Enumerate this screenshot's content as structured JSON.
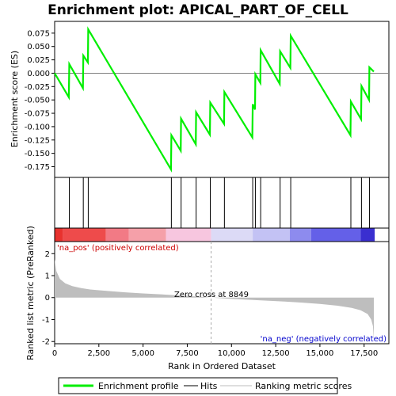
{
  "chart_data": {
    "type": "line",
    "title": "Enrichment plot: APICAL_PART_OF_CELL",
    "ylabel_top": "Enrichment score (ES)",
    "ylabel_bottom": "Ranked list metric (PreRanked)",
    "xlabel": "Rank in Ordered Dataset",
    "x_ticks": [
      "0",
      "2,500",
      "5,000",
      "7,500",
      "10,000",
      "12,500",
      "15,000",
      "17,500"
    ],
    "x_tick_values": [
      0,
      2500,
      5000,
      7500,
      10000,
      12500,
      15000,
      17500
    ],
    "xlim": [
      0,
      18900
    ],
    "es_ylim": [
      -0.195,
      0.097
    ],
    "es_y_ticks": [
      "0.075",
      "0.050",
      "0.025",
      "0.000",
      "-0.025",
      "-0.050",
      "-0.075",
      "-0.100",
      "-0.125",
      "-0.150",
      "-0.175"
    ],
    "es_y_tick_values": [
      0.075,
      0.05,
      0.025,
      0.0,
      -0.025,
      -0.05,
      -0.075,
      -0.1,
      -0.125,
      -0.15,
      -0.175
    ],
    "metric_ylim": [
      -2.1,
      2.55
    ],
    "metric_y_ticks": [
      "2",
      "1",
      "0",
      "-1",
      "-2"
    ],
    "metric_y_tick_values": [
      2,
      1,
      0,
      -1,
      -2
    ],
    "hits": [
      830,
      1620,
      1900,
      6600,
      7150,
      8000,
      8800,
      9600,
      11200,
      11350,
      11650,
      12750,
      13350,
      16750,
      17350,
      17800
    ],
    "es_points": [
      [
        0,
        0.0
      ],
      [
        800,
        -0.045
      ],
      [
        830,
        0.017
      ],
      [
        1600,
        -0.028
      ],
      [
        1620,
        0.033
      ],
      [
        1880,
        0.02
      ],
      [
        1900,
        0.082
      ],
      [
        6580,
        -0.18
      ],
      [
        6600,
        -0.116
      ],
      [
        7130,
        -0.145
      ],
      [
        7150,
        -0.085
      ],
      [
        7980,
        -0.133
      ],
      [
        8000,
        -0.073
      ],
      [
        8780,
        -0.115
      ],
      [
        8800,
        -0.055
      ],
      [
        9580,
        -0.095
      ],
      [
        9600,
        -0.035
      ],
      [
        11180,
        -0.12
      ],
      [
        11200,
        -0.058
      ],
      [
        11330,
        -0.068
      ],
      [
        11350,
        -0.002
      ],
      [
        11630,
        -0.018
      ],
      [
        11650,
        0.043
      ],
      [
        12730,
        -0.02
      ],
      [
        12750,
        0.041
      ],
      [
        13330,
        0.01
      ],
      [
        13350,
        0.07
      ],
      [
        16730,
        -0.116
      ],
      [
        16750,
        -0.053
      ],
      [
        17330,
        -0.086
      ],
      [
        17350,
        -0.024
      ],
      [
        17780,
        -0.05
      ],
      [
        17800,
        0.011
      ],
      [
        18050,
        0.003
      ]
    ],
    "metric_curve": [
      [
        0,
        1.75
      ],
      [
        100,
        1.2
      ],
      [
        300,
        0.85
      ],
      [
        600,
        0.65
      ],
      [
        1000,
        0.52
      ],
      [
        1500,
        0.43
      ],
      [
        2000,
        0.37
      ],
      [
        3000,
        0.3
      ],
      [
        4000,
        0.24
      ],
      [
        5000,
        0.19
      ],
      [
        6000,
        0.15
      ],
      [
        7000,
        0.1
      ],
      [
        8000,
        0.05
      ],
      [
        8849,
        0.0
      ],
      [
        10000,
        -0.06
      ],
      [
        11000,
        -0.1
      ],
      [
        12000,
        -0.14
      ],
      [
        13000,
        -0.18
      ],
      [
        14000,
        -0.23
      ],
      [
        15000,
        -0.29
      ],
      [
        16000,
        -0.37
      ],
      [
        16800,
        -0.47
      ],
      [
        17300,
        -0.58
      ],
      [
        17700,
        -0.75
      ],
      [
        17900,
        -1.0
      ],
      [
        18000,
        -1.3
      ],
      [
        18050,
        -1.9
      ]
    ],
    "zero_cross_label": "Zero cross at 8849",
    "zero_cross": 8849,
    "pos_label": "'na_pos' (positively correlated)",
    "neg_label": "'na_neg' (negatively correlated)",
    "heat_segments": [
      {
        "from": 0,
        "to": 450,
        "color": "#e8322e"
      },
      {
        "from": 450,
        "to": 2900,
        "color": "#ee4b4b"
      },
      {
        "from": 2900,
        "to": 4200,
        "color": "#f27a85"
      },
      {
        "from": 4200,
        "to": 6300,
        "color": "#f5a0a9"
      },
      {
        "from": 6300,
        "to": 8849,
        "color": "#f7c6df"
      },
      {
        "from": 8849,
        "to": 11200,
        "color": "#dcdaf6"
      },
      {
        "from": 11200,
        "to": 13300,
        "color": "#c3c2f4"
      },
      {
        "from": 13300,
        "to": 14500,
        "color": "#8d8bee"
      },
      {
        "from": 14500,
        "to": 17300,
        "color": "#6460e8"
      },
      {
        "from": 17300,
        "to": 18100,
        "color": "#3a2fd0"
      }
    ],
    "colors": {
      "es_line": "#00ee00",
      "hits": "#000000",
      "metric_fill": "#bebebe",
      "zero_line": "#808080",
      "pos_label": "#cc0000",
      "neg_label": "#0000cc"
    }
  },
  "legend": [
    {
      "label": "Enrichment profile",
      "color": "#00ee00",
      "kind": "thick-line"
    },
    {
      "label": "Hits",
      "color": "#000000",
      "kind": "line"
    },
    {
      "label": "Ranking metric scores",
      "color": "#bebebe",
      "kind": "line"
    }
  ]
}
